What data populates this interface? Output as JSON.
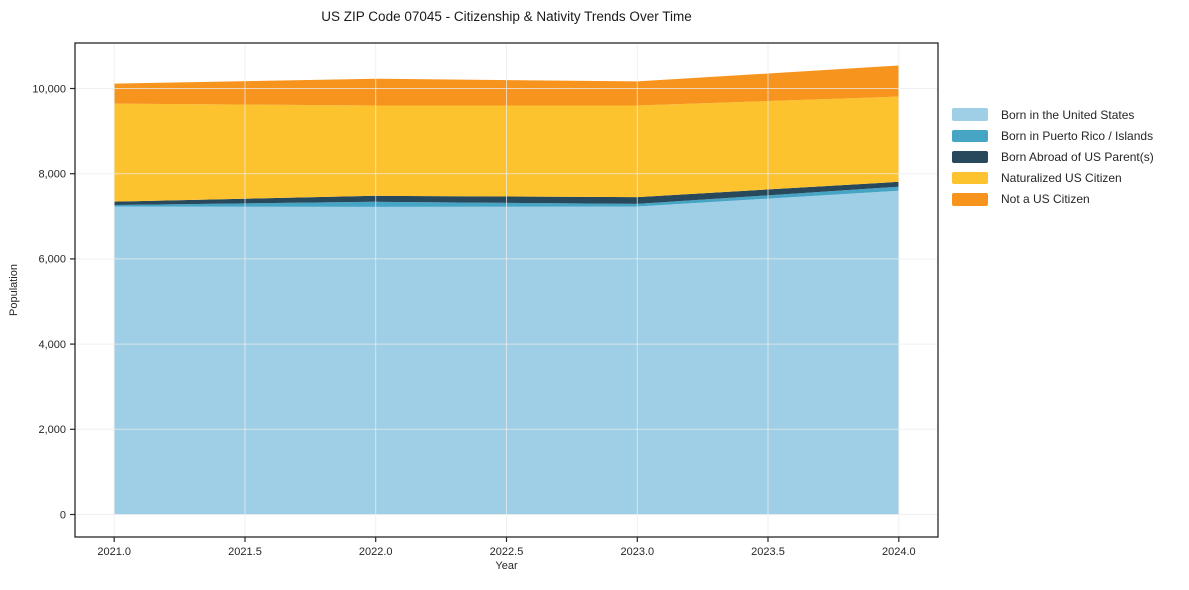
{
  "chart": {
    "title": "US ZIP Code 07045 - Citizenship & Nativity Trends Over Time",
    "xlabel": "Year",
    "ylabel": "Population"
  },
  "chart_data": {
    "type": "area",
    "stacked": true,
    "title": "US ZIP Code 07045 - Citizenship & Nativity Trends Over Time",
    "xlabel": "Year",
    "ylabel": "Population",
    "x": [
      2021,
      2022,
      2023,
      2024
    ],
    "series": [
      {
        "name": "Born in the United States",
        "color": "#9fcfe6",
        "values": [
          7230,
          7220,
          7230,
          7600
        ]
      },
      {
        "name": "Born in Puerto Rico / Islands",
        "color": "#46a5c5",
        "values": [
          35,
          120,
          60,
          95
        ]
      },
      {
        "name": "Born Abroad of US Parent(s)",
        "color": "#28495c",
        "values": [
          80,
          140,
          160,
          115
        ]
      },
      {
        "name": "Naturalized US Citizen",
        "color": "#fdc32f",
        "values": [
          2300,
          2120,
          2150,
          2000
        ]
      },
      {
        "name": "Not a US Citizen",
        "color": "#f7941e",
        "values": [
          470,
          630,
          565,
          730
        ]
      }
    ],
    "stacked_totals": [
      10115,
      10230,
      10165,
      10540
    ],
    "xlim": [
      2020.85,
      2024.15
    ],
    "ylim": [
      -527,
      11067
    ],
    "xticks": {
      "values": [
        2021.0,
        2021.5,
        2022.0,
        2022.5,
        2023.0,
        2023.5,
        2024.0
      ],
      "labels": [
        "2021.0",
        "2021.5",
        "2022.0",
        "2022.5",
        "2023.0",
        "2023.5",
        "2024.0"
      ]
    },
    "yticks": {
      "values": [
        0,
        2000,
        4000,
        6000,
        8000,
        10000
      ],
      "labels": [
        "0",
        "2,000",
        "4,000",
        "6,000",
        "8,000",
        "10,000"
      ]
    },
    "grid": true,
    "legend_position": "right-outside"
  },
  "colors": {
    "axis": "#262626",
    "tick_text": "#262626",
    "grid": "#ebebeb",
    "background": "#ffffff"
  }
}
